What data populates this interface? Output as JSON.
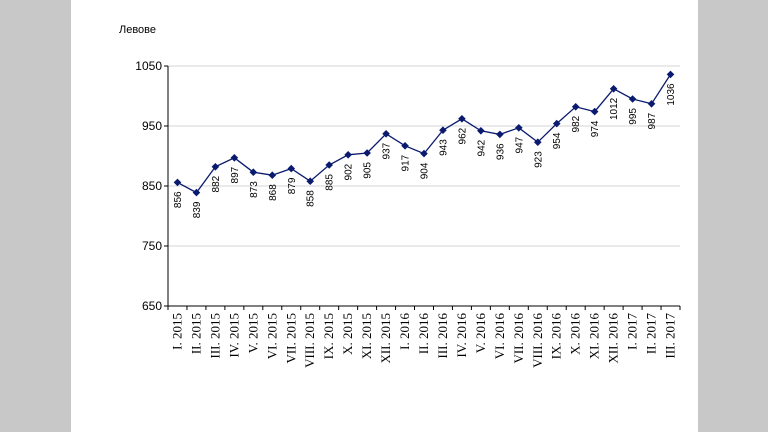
{
  "chart_data": {
    "type": "line",
    "ylabel": "Левове",
    "ylim": [
      650,
      1050
    ],
    "yticks": [
      "650",
      "750",
      "850",
      "950",
      "1050"
    ],
    "grid": true,
    "colors": {
      "line": "#0a1a6e",
      "marker": "#0a1a6e",
      "grid": "#d4d4d4"
    },
    "categories": [
      "I. 2015",
      "II. 2015",
      "III. 2015",
      "IV. 2015",
      "V. 2015",
      "VI. 2015",
      "VII. 2015",
      "VIII. 2015",
      "IX. 2015",
      "X. 2015",
      "XI. 2015",
      "XII. 2015",
      "I. 2016",
      "II. 2016",
      "III. 2016",
      "IV. 2016",
      "V. 2016",
      "VI. 2016",
      "VII. 2016",
      "VIII. 2016",
      "IX. 2016",
      "X. 2016",
      "XI. 2016",
      "XII. 2016",
      "I. 2017",
      "II. 2017",
      "III. 2017"
    ],
    "values": [
      856,
      839,
      882,
      897,
      873,
      868,
      879,
      858,
      885,
      902,
      905,
      937,
      917,
      904,
      943,
      962,
      942,
      936,
      947,
      923,
      954,
      982,
      974,
      1012,
      995,
      987,
      1036
    ],
    "data_labels": [
      "856",
      "839",
      "882",
      "897",
      "873",
      "868",
      "879",
      "858",
      "885",
      "902",
      "905",
      "937",
      "917",
      "904",
      "943",
      "962",
      "942",
      "936",
      "947",
      "923",
      "954",
      "982",
      "974",
      "1012",
      "995",
      "987",
      "1036"
    ]
  }
}
